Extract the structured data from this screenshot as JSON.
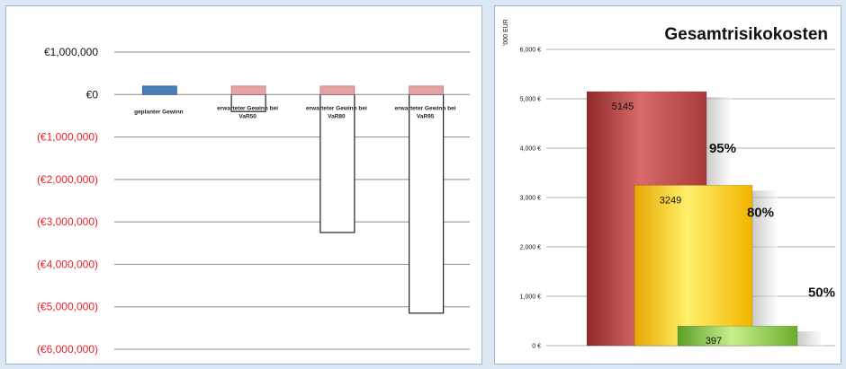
{
  "chart_data": [
    {
      "type": "bar",
      "categories": [
        "geplanter Gewinn",
        "erwarteter Gewinn bei VaR50",
        "erwarteter Gewinn bei VaR80",
        "erwarteter Gewinn bei VaR95"
      ],
      "series": [
        {
          "values": [
            200000,
            200000,
            200000,
            200000
          ]
        },
        {
          "values": [
            0,
            -400000,
            -3250000,
            -5150000
          ]
        }
      ],
      "yticks": [
        "€1,000,000",
        "€0",
        "(€1,000,000)",
        "(€2,000,000)",
        "(€3,000,000)",
        "(€4,000,000)",
        "(€5,000,000)",
        "(€6,000,000)"
      ],
      "ylim": [
        -6000000,
        1000000
      ],
      "grid": true,
      "colors": {
        "planned": "#4a7ebb",
        "expected": "#e6a3a3",
        "loss": "#ffffff",
        "negative_ticks": "#e8202a"
      }
    },
    {
      "type": "bar",
      "title": "Gesamtrisikokosten",
      "ylabel": "'000 EUR",
      "yticks": [
        "6,000 €",
        "5,000 €",
        "4,000 €",
        "3,000 €",
        "2,000 €",
        "1,000 €",
        "0 €"
      ],
      "ylim": [
        0,
        6000
      ],
      "categories": [
        "95%",
        "80%",
        "50%"
      ],
      "values": [
        5145,
        3249,
        397
      ],
      "data_labels": [
        "5145",
        "3249",
        "397"
      ],
      "grid": true,
      "colors": {
        "95%": "#b84040",
        "80%": "#f7c21c",
        "50%": "#8cc63f"
      }
    }
  ]
}
